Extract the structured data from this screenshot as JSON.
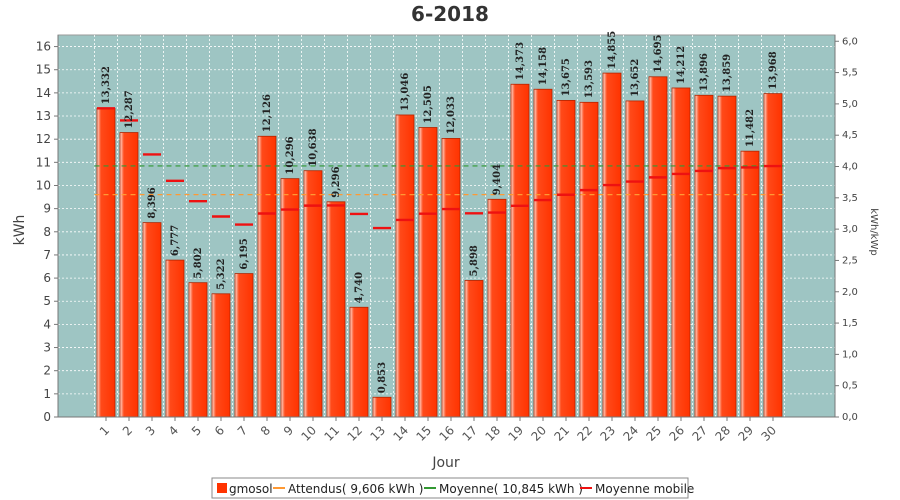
{
  "chart_data": {
    "type": "bar",
    "title": "6-2018",
    "xlabel": "Jour",
    "ylabel": "kWh",
    "y2label": "kWh/kWp",
    "ylim": [
      0,
      16.5
    ],
    "y2lim": [
      0,
      6.1
    ],
    "yticks": [
      "0",
      "1",
      "2",
      "3",
      "4",
      "5",
      "6",
      "7",
      "8",
      "9",
      "10",
      "11",
      "12",
      "13",
      "14",
      "15",
      "16"
    ],
    "y2ticks": [
      "0,0",
      "0,5",
      "1,0",
      "1,5",
      "2,0",
      "2,5",
      "3,0",
      "3,5",
      "4,0",
      "4,5",
      "5,0",
      "5,5",
      "6,0"
    ],
    "grid": true,
    "legend_position": "bottom",
    "categories": [
      "1",
      "2",
      "3",
      "4",
      "5",
      "6",
      "7",
      "8",
      "9",
      "10",
      "11",
      "12",
      "13",
      "14",
      "15",
      "16",
      "17",
      "18",
      "19",
      "20",
      "21",
      "22",
      "23",
      "24",
      "25",
      "26",
      "27",
      "28",
      "29",
      "30"
    ],
    "series": [
      {
        "name": "gmosol",
        "kind": "bar",
        "color": "#ff3300",
        "values": [
          13.332,
          12.287,
          8.396,
          6.777,
          5.802,
          5.322,
          6.195,
          12.126,
          10.296,
          10.638,
          9.296,
          4.74,
          0.853,
          13.046,
          12.505,
          12.033,
          5.898,
          9.404,
          14.373,
          14.158,
          13.675,
          13.593,
          14.855,
          13.652,
          14.695,
          14.212,
          13.896,
          13.859,
          11.482,
          13.968
        ],
        "labels": [
          "13,332",
          "12,287",
          "8,396",
          "6,777",
          "5,802",
          "5,322",
          "6,195",
          "12,126",
          "10,296",
          "10,638",
          "9,296",
          "4,740",
          "0,853",
          "13,046",
          "12,505",
          "12,033",
          "5,898",
          "9,404",
          "14,373",
          "14,158",
          "13,675",
          "13,593",
          "14,855",
          "13,652",
          "14,695",
          "14,212",
          "13,896",
          "13,859",
          "11,482",
          "13,968"
        ]
      },
      {
        "name": "Attendus( 9,606 kWh )",
        "kind": "hline",
        "color": "#ff9933",
        "value": 9.606
      },
      {
        "name": "Moyenne( 10,845 kWh )",
        "kind": "hline",
        "color": "#339933",
        "value": 10.845
      },
      {
        "name": "Moyenne mobile",
        "kind": "step",
        "color": "#ee1111",
        "values": [
          13.332,
          12.81,
          11.34,
          10.2,
          9.32,
          8.66,
          8.31,
          8.79,
          8.96,
          9.13,
          9.14,
          8.77,
          8.16,
          8.51,
          8.78,
          8.98,
          8.8,
          8.83,
          9.12,
          9.37,
          9.6,
          9.8,
          10.02,
          10.17,
          10.35,
          10.5,
          10.63,
          10.75,
          10.78,
          10.84
        ]
      }
    ]
  }
}
